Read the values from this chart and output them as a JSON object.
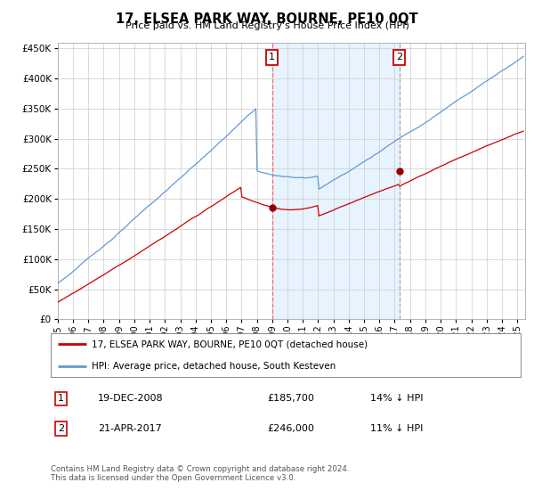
{
  "title": "17, ELSEA PARK WAY, BOURNE, PE10 0QT",
  "subtitle": "Price paid vs. HM Land Registry's House Price Index (HPI)",
  "legend_line1": "17, ELSEA PARK WAY, BOURNE, PE10 0QT (detached house)",
  "legend_line2": "HPI: Average price, detached house, South Kesteven",
  "annotation1_label": "1",
  "annotation1_date": "19-DEC-2008",
  "annotation1_price": "£185,700",
  "annotation1_hpi": "14% ↓ HPI",
  "annotation2_label": "2",
  "annotation2_date": "21-APR-2017",
  "annotation2_price": "£246,000",
  "annotation2_hpi": "11% ↓ HPI",
  "footer": "Contains HM Land Registry data © Crown copyright and database right 2024.\nThis data is licensed under the Open Government Licence v3.0.",
  "hpi_color": "#6699cc",
  "hpi_fill_color": "#ddeeff",
  "price_color": "#cc0000",
  "vline1_color": "#ff6666",
  "vline2_color": "#aaaaaa",
  "annotation_box_color": "#cc0000",
  "dot_color": "#990000",
  "ylim": [
    0,
    460000
  ],
  "yticks": [
    0,
    50000,
    100000,
    150000,
    200000,
    250000,
    300000,
    350000,
    400000,
    450000
  ],
  "purchase1_x": 2009.0,
  "purchase1_y": 185700,
  "purchase2_x": 2017.3,
  "purchase2_y": 246000,
  "xmin": 1995,
  "xmax": 2025.5
}
